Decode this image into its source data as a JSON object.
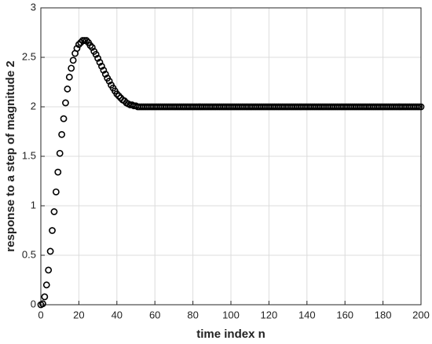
{
  "chart_data": {
    "type": "scatter",
    "xlabel": "time index n",
    "ylabel": "response to a step of magnitude 2",
    "xlim": [
      0,
      200
    ],
    "ylim": [
      0,
      3
    ],
    "xticks": [
      0,
      20,
      40,
      60,
      80,
      100,
      120,
      140,
      160,
      180,
      200
    ],
    "yticks": [
      0,
      0.5,
      1,
      1.5,
      2,
      2.5,
      3
    ],
    "grid": true,
    "color": "#000000",
    "x": [
      0,
      1,
      2,
      3,
      4,
      5,
      6,
      7,
      8,
      9,
      10,
      11,
      12,
      13,
      14,
      15,
      16,
      17,
      18,
      19,
      20,
      21,
      22,
      23,
      24,
      25,
      26,
      27,
      28,
      29,
      30,
      31,
      32,
      33,
      34,
      35,
      36,
      37,
      38,
      39,
      40,
      41,
      42,
      43,
      44,
      45,
      46,
      47,
      48,
      49,
      50,
      51,
      52,
      53,
      54,
      55,
      56,
      57,
      58,
      59,
      60,
      61,
      62,
      63,
      64,
      65,
      66,
      67,
      68,
      69,
      70,
      71,
      72,
      73,
      74,
      75,
      76,
      77,
      78,
      79,
      80,
      81,
      82,
      83,
      84,
      85,
      86,
      87,
      88,
      89,
      90,
      91,
      92,
      93,
      94,
      95,
      96,
      97,
      98,
      99,
      100,
      101,
      102,
      103,
      104,
      105,
      106,
      107,
      108,
      109,
      110,
      111,
      112,
      113,
      114,
      115,
      116,
      117,
      118,
      119,
      120,
      121,
      122,
      123,
      124,
      125,
      126,
      127,
      128,
      129,
      130,
      131,
      132,
      133,
      134,
      135,
      136,
      137,
      138,
      139,
      140,
      141,
      142,
      143,
      144,
      145,
      146,
      147,
      148,
      149,
      150,
      151,
      152,
      153,
      154,
      155,
      156,
      157,
      158,
      159,
      160,
      161,
      162,
      163,
      164,
      165,
      166,
      167,
      168,
      169,
      170,
      171,
      172,
      173,
      174,
      175,
      176,
      177,
      178,
      179,
      180,
      181,
      182,
      183,
      184,
      185,
      186,
      187,
      188,
      189,
      190,
      191,
      192,
      193,
      194,
      195,
      196,
      197,
      198,
      199,
      200
    ],
    "values": [
      0,
      0.01,
      0.08,
      0.2,
      0.35,
      0.54,
      0.75,
      0.94,
      1.14,
      1.34,
      1.53,
      1.72,
      1.88,
      2.04,
      2.18,
      2.3,
      2.39,
      2.47,
      2.54,
      2.59,
      2.63,
      2.65,
      2.67,
      2.67,
      2.67,
      2.65,
      2.62,
      2.6,
      2.56,
      2.53,
      2.49,
      2.45,
      2.41,
      2.37,
      2.33,
      2.29,
      2.26,
      2.22,
      2.19,
      2.16,
      2.13,
      2.11,
      2.09,
      2.07,
      2.06,
      2.04,
      2.03,
      2.02,
      2.02,
      2.01,
      2.01,
      2,
      2,
      2,
      2,
      2,
      2,
      2,
      2,
      2,
      2,
      2,
      2,
      2,
      2,
      2,
      2,
      2,
      2,
      2,
      2,
      2,
      2,
      2,
      2,
      2,
      2,
      2,
      2,
      2,
      2,
      2,
      2,
      2,
      2,
      2,
      2,
      2,
      2,
      2,
      2,
      2,
      2,
      2,
      2,
      2,
      2,
      2,
      2,
      2,
      2,
      2,
      2,
      2,
      2,
      2,
      2,
      2,
      2,
      2,
      2,
      2,
      2,
      2,
      2,
      2,
      2,
      2,
      2,
      2,
      2,
      2,
      2,
      2,
      2,
      2,
      2,
      2,
      2,
      2,
      2,
      2,
      2,
      2,
      2,
      2,
      2,
      2,
      2,
      2,
      2,
      2,
      2,
      2,
      2,
      2,
      2,
      2,
      2,
      2,
      2,
      2,
      2,
      2,
      2,
      2,
      2,
      2,
      2,
      2,
      2,
      2,
      2,
      2,
      2,
      2,
      2,
      2,
      2,
      2,
      2,
      2,
      2,
      2,
      2,
      2,
      2,
      2,
      2,
      2,
      2,
      2,
      2,
      2,
      2,
      2,
      2,
      2,
      2,
      2,
      2,
      2,
      2,
      2,
      2,
      2,
      2,
      2,
      2,
      2,
      2
    ]
  }
}
